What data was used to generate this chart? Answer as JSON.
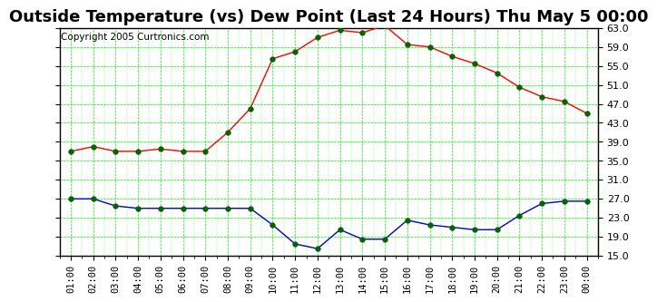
{
  "title": "Outside Temperature (vs) Dew Point (Last 24 Hours) Thu May 5 00:00",
  "copyright": "Copyright 2005 Curtronics.com",
  "x_labels": [
    "01:00",
    "02:00",
    "03:00",
    "04:00",
    "05:00",
    "06:00",
    "07:00",
    "08:00",
    "09:00",
    "10:00",
    "11:00",
    "12:00",
    "13:00",
    "14:00",
    "15:00",
    "16:00",
    "17:00",
    "18:00",
    "19:00",
    "20:00",
    "21:00",
    "22:00",
    "23:00",
    "00:00"
  ],
  "temp_data": [
    37.0,
    38.0,
    37.0,
    37.0,
    37.5,
    37.0,
    37.0,
    41.0,
    46.0,
    56.5,
    58.0,
    61.0,
    62.5,
    62.0,
    63.5,
    59.5,
    59.0,
    57.0,
    55.5,
    53.5,
    50.5,
    48.5,
    47.5,
    45.0
  ],
  "dew_data": [
    27.0,
    27.0,
    25.5,
    25.0,
    25.0,
    25.0,
    25.0,
    25.0,
    25.0,
    21.5,
    17.5,
    16.5,
    20.5,
    18.5,
    18.5,
    22.5,
    21.5,
    21.0,
    20.5,
    20.5,
    23.5,
    26.0,
    26.5,
    26.5
  ],
  "temp_color": "#ff0000",
  "dew_color": "#0000cc",
  "bg_color": "#ffffff",
  "plot_bg_color": "#ffffff",
  "grid_color": "#00ff00",
  "ylim": [
    15.0,
    63.0
  ],
  "yticks": [
    15.0,
    19.0,
    23.0,
    27.0,
    31.0,
    35.0,
    39.0,
    43.0,
    47.0,
    51.0,
    55.0,
    59.0,
    63.0
  ],
  "title_fontsize": 13,
  "copyright_fontsize": 7.5,
  "marker_color": "#006400",
  "marker_size": 4
}
